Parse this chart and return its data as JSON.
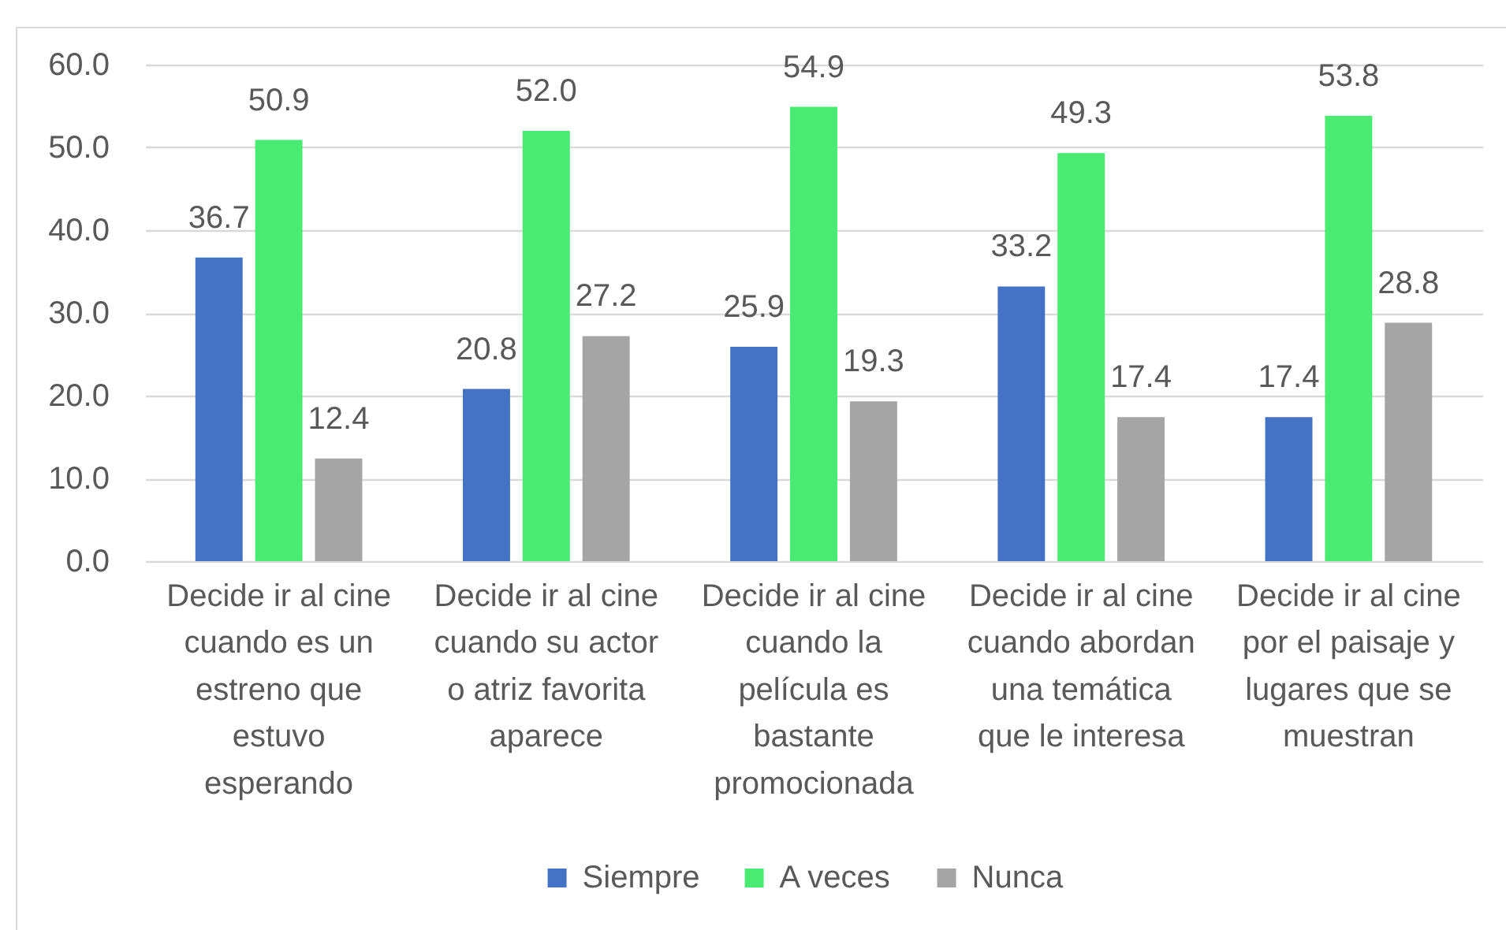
{
  "chart_data": {
    "type": "bar",
    "categories": [
      "Decide ir al cine cuando es un estreno que estuvo esperando",
      "Decide ir al cine cuando su actor o atriz favorita aparece",
      "Decide ir al cine cuando la película es bastante promocionada",
      "Decide ir al cine cuando abordan una temática que le interesa",
      "Decide ir al cine por el paisaje y lugares que se muestran"
    ],
    "series": [
      {
        "name": "Siempre",
        "color": "#4472c4",
        "values": [
          36.7,
          20.8,
          25.9,
          33.2,
          17.4
        ],
        "value_labels": [
          "36.7",
          "20.8",
          "25.9",
          "33.2",
          "17.4"
        ]
      },
      {
        "name": "A veces",
        "color": "#4aeb72",
        "values": [
          50.9,
          52.0,
          54.9,
          49.3,
          53.8
        ],
        "value_labels": [
          "50.9",
          "52.0",
          "54.9",
          "49.3",
          "53.8"
        ]
      },
      {
        "name": "Nunca",
        "color": "#a5a5a5",
        "values": [
          12.4,
          27.2,
          19.3,
          17.4,
          28.8
        ],
        "value_labels": [
          "12.4",
          "27.2",
          "19.3",
          "17.4",
          "28.8"
        ]
      }
    ],
    "ylim": [
      0,
      60
    ],
    "yticks": [
      {
        "value": 0,
        "label": "0.0"
      },
      {
        "value": 10,
        "label": "10.0"
      },
      {
        "value": 20,
        "label": "20.0"
      },
      {
        "value": 30,
        "label": "30.0"
      },
      {
        "value": 40,
        "label": "40.0"
      },
      {
        "value": 50,
        "label": "50.0"
      },
      {
        "value": 60,
        "label": "60.0"
      }
    ],
    "grid": "y",
    "legend": "bottom"
  }
}
